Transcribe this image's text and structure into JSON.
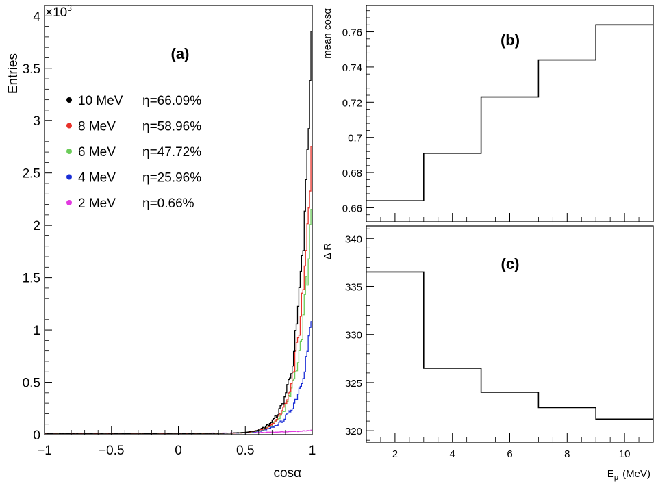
{
  "chart_data": [
    {
      "type": "line",
      "panel_label": "(a)",
      "xlabel": "cosα",
      "ylabel": "Entries",
      "y_scale_label": "×10",
      "y_scale_exp": "3",
      "xlim": [
        -1,
        1
      ],
      "ylim": [
        0,
        4.1
      ],
      "y_unit_multiplier": 1000,
      "x_ticks": [
        -1,
        -0.5,
        0,
        0.5,
        1
      ],
      "x_tick_labels": [
        "−1",
        "−0.5",
        "0",
        "0.5",
        "1"
      ],
      "y_ticks": [
        0,
        0.5,
        1,
        1.5,
        2,
        2.5,
        3,
        3.5,
        4
      ],
      "y_tick_labels": [
        "0",
        "0.5",
        "1",
        "1.5",
        "2",
        "2.5",
        "3",
        "3.5",
        "4"
      ],
      "legend_position": "upper-left",
      "series": [
        {
          "name": "10 MeV",
          "efficiency": "η=66.09%",
          "color": "#000000",
          "peak": 3.9,
          "scale": 0.085
        },
        {
          "name": "8 MeV",
          "efficiency": "η=58.96%",
          "color": "#e8322a",
          "peak": 3.1,
          "scale": 0.085
        },
        {
          "name": "6 MeV",
          "efficiency": "η=47.72%",
          "color": "#6ccc5a",
          "peak": 2.3,
          "scale": 0.09
        },
        {
          "name": "4 MeV",
          "efficiency": "η=25.96%",
          "color": "#1a2ed6",
          "peak": 1.12,
          "scale": 0.1
        },
        {
          "name": "2 MeV",
          "efficiency": "η=0.66%",
          "color": "#e23ae0",
          "peak": 0.03,
          "scale": 0.3
        }
      ]
    },
    {
      "type": "line",
      "style": "step",
      "panel_label": "(b)",
      "xlabel": "",
      "ylabel": "mean cosα",
      "xlim": [
        1,
        11
      ],
      "ylim": [
        0.652,
        0.775
      ],
      "y_ticks": [
        0.66,
        0.68,
        0.7,
        0.72,
        0.74,
        0.76
      ],
      "y_tick_labels": [
        "0.66",
        "0.68",
        "0.7",
        "0.72",
        "0.74",
        "0.76"
      ],
      "bin_edges": [
        1,
        3,
        5,
        7,
        9,
        11
      ],
      "values": [
        0.664,
        0.691,
        0.723,
        0.744,
        0.764
      ],
      "color": "#000000"
    },
    {
      "type": "line",
      "style": "step",
      "panel_label": "(c)",
      "xlabel": "E",
      "xlabel_sub": "μ",
      "xlabel_unit": "(MeV)",
      "ylabel": "Δ R",
      "xlim": [
        1,
        11
      ],
      "ylim": [
        318.8,
        341.3
      ],
      "x_ticks": [
        2,
        4,
        6,
        8,
        10
      ],
      "x_tick_labels": [
        "2",
        "4",
        "6",
        "8",
        "10"
      ],
      "y_ticks": [
        320,
        325,
        330,
        335,
        340
      ],
      "y_tick_labels": [
        "320",
        "325",
        "330",
        "335",
        "340"
      ],
      "bin_edges": [
        1,
        3,
        5,
        7,
        9,
        11
      ],
      "values": [
        336.5,
        326.5,
        324.0,
        322.4,
        321.2
      ],
      "color": "#000000"
    }
  ]
}
